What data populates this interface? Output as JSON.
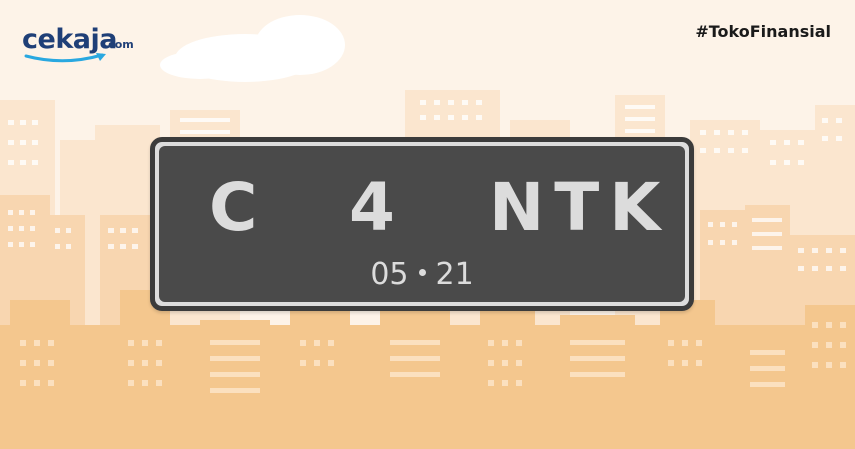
{
  "brand": {
    "name": "cekaja",
    "suffix": ".com"
  },
  "hashtag": "#TokoFinansial",
  "plate": {
    "letter": "C",
    "number": "4",
    "suffix": "NTK",
    "month": "05",
    "year": "21"
  },
  "colors": {
    "background": "#fdf3e8",
    "building_light": "#fbe3c8",
    "building_mid": "#f8d5ae",
    "building_front": "#f4c78d",
    "plate_dark": "#4a4a4a",
    "plate_text": "#dcdcdc",
    "brand_blue": "#1f3f77",
    "brand_accent": "#29a8e0"
  }
}
